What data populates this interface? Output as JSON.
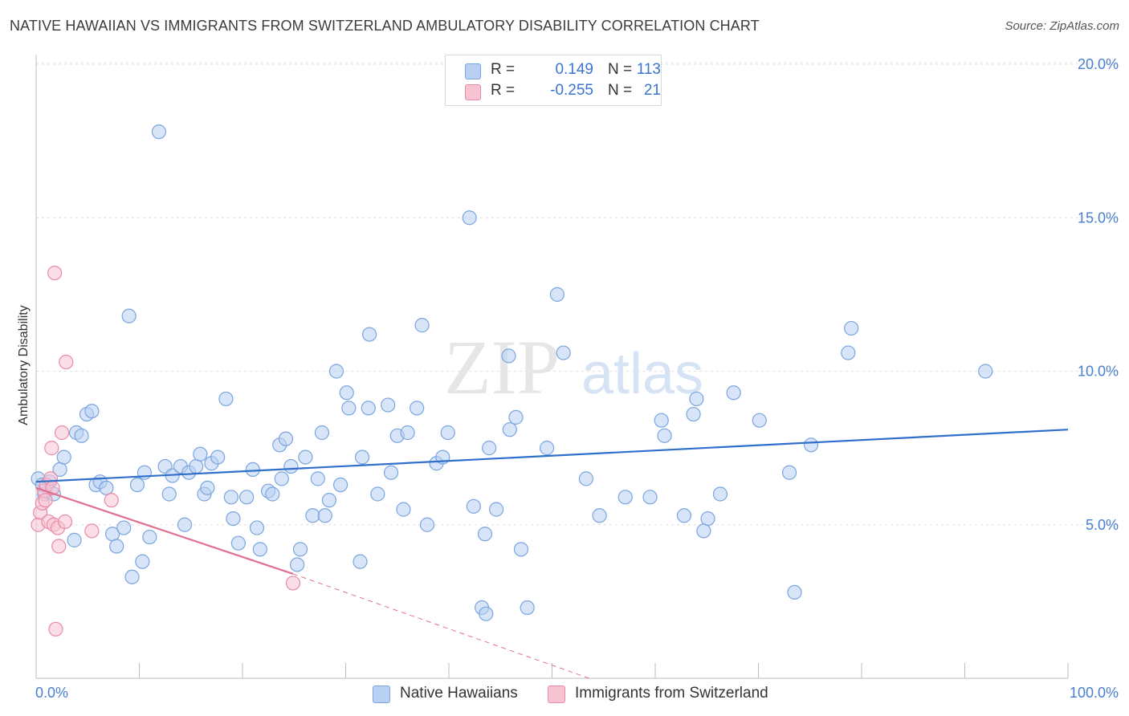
{
  "header": {
    "title": "NATIVE HAWAIIAN VS IMMIGRANTS FROM SWITZERLAND AMBULATORY DISABILITY CORRELATION CHART",
    "source": "Source: ZipAtlas.com"
  },
  "legend": {
    "rows": [
      {
        "r_label": "R =",
        "r_value": "0.149",
        "n_label": "N =",
        "n_value": "113"
      },
      {
        "r_label": "R =",
        "r_value": "-0.255",
        "n_label": "N =",
        "n_value": "21"
      }
    ]
  },
  "colors": {
    "blue_fill": "#b8d0f3",
    "blue_stroke": "#7aa5df",
    "blue_line": "#2f6fcb",
    "pink_fill": "#f7c3d1",
    "pink_stroke": "#e98aa8",
    "pink_line": "#e0708f",
    "accent_text": "#3b74cf"
  },
  "watermark": {
    "zip": "ZIP",
    "atlas": "atlas"
  },
  "chart_data": {
    "type": "scatter",
    "title": "NATIVE HAWAIIAN VS IMMIGRANTS FROM SWITZERLAND AMBULATORY DISABILITY CORRELATION CHART",
    "xlabel": "",
    "ylabel": "Ambulatory Disability",
    "xlim": [
      0,
      100
    ],
    "ylim": [
      0,
      20
    ],
    "x_tick_labels": [
      "0.0%",
      "100.0%"
    ],
    "y_ticks": [
      5,
      10,
      15,
      20
    ],
    "y_tick_labels": [
      "5.0%",
      "10.0%",
      "15.0%",
      "20.0%"
    ],
    "grid": true,
    "legend_position": "bottom",
    "series": [
      {
        "name": "Native Hawaiians",
        "color": "#7aa5df",
        "regression": {
          "x": [
            0,
            100
          ],
          "y": [
            6.4,
            8.1
          ]
        },
        "points": [
          [
            0.2,
            6.5
          ],
          [
            0.6,
            6.3
          ],
          [
            0.8,
            6.0
          ],
          [
            1.3,
            6.4
          ],
          [
            1.7,
            6.0
          ],
          [
            2.3,
            6.8
          ],
          [
            2.7,
            7.2
          ],
          [
            3.9,
            8.0
          ],
          [
            3.7,
            4.5
          ],
          [
            4.4,
            7.9
          ],
          [
            4.9,
            8.6
          ],
          [
            5.4,
            8.7
          ],
          [
            5.8,
            6.3
          ],
          [
            6.2,
            6.4
          ],
          [
            6.8,
            6.2
          ],
          [
            7.4,
            4.7
          ],
          [
            7.8,
            4.3
          ],
          [
            8.5,
            4.9
          ],
          [
            9.0,
            11.8
          ],
          [
            9.3,
            3.3
          ],
          [
            9.8,
            6.3
          ],
          [
            10.3,
            3.8
          ],
          [
            10.5,
            6.7
          ],
          [
            11.0,
            4.6
          ],
          [
            11.9,
            17.8
          ],
          [
            12.5,
            6.9
          ],
          [
            12.9,
            6.0
          ],
          [
            13.2,
            6.6
          ],
          [
            14.0,
            6.9
          ],
          [
            14.4,
            5.0
          ],
          [
            14.8,
            6.7
          ],
          [
            15.5,
            6.9
          ],
          [
            15.9,
            7.3
          ],
          [
            16.3,
            6.0
          ],
          [
            16.6,
            6.2
          ],
          [
            17.0,
            7.0
          ],
          [
            17.6,
            7.2
          ],
          [
            18.4,
            9.1
          ],
          [
            18.9,
            5.9
          ],
          [
            19.1,
            5.2
          ],
          [
            19.6,
            4.4
          ],
          [
            20.4,
            5.9
          ],
          [
            21.0,
            6.8
          ],
          [
            21.4,
            4.9
          ],
          [
            21.7,
            4.2
          ],
          [
            22.5,
            6.1
          ],
          [
            22.9,
            6.0
          ],
          [
            23.6,
            7.6
          ],
          [
            23.8,
            6.5
          ],
          [
            24.2,
            7.8
          ],
          [
            24.7,
            6.9
          ],
          [
            25.3,
            3.7
          ],
          [
            25.6,
            4.2
          ],
          [
            26.1,
            7.2
          ],
          [
            26.8,
            5.3
          ],
          [
            27.3,
            6.5
          ],
          [
            27.7,
            8.0
          ],
          [
            28.0,
            5.3
          ],
          [
            28.4,
            5.8
          ],
          [
            29.1,
            10.0
          ],
          [
            29.5,
            6.3
          ],
          [
            30.1,
            9.3
          ],
          [
            30.3,
            8.8
          ],
          [
            31.4,
            3.8
          ],
          [
            31.6,
            7.2
          ],
          [
            32.2,
            8.8
          ],
          [
            32.3,
            11.2
          ],
          [
            33.1,
            6.0
          ],
          [
            34.1,
            8.9
          ],
          [
            34.4,
            6.7
          ],
          [
            35.0,
            7.9
          ],
          [
            35.6,
            5.5
          ],
          [
            36.0,
            8.0
          ],
          [
            36.9,
            8.8
          ],
          [
            37.4,
            11.5
          ],
          [
            37.9,
            5.0
          ],
          [
            38.8,
            7.0
          ],
          [
            39.4,
            7.2
          ],
          [
            39.9,
            8.0
          ],
          [
            42.0,
            15.0
          ],
          [
            42.4,
            5.6
          ],
          [
            43.2,
            2.3
          ],
          [
            43.6,
            2.1
          ],
          [
            43.5,
            4.7
          ],
          [
            43.9,
            7.5
          ],
          [
            44.6,
            5.5
          ],
          [
            45.8,
            10.5
          ],
          [
            45.9,
            8.1
          ],
          [
            46.5,
            8.5
          ],
          [
            47.0,
            4.2
          ],
          [
            47.6,
            2.3
          ],
          [
            49.5,
            7.5
          ],
          [
            50.5,
            12.5
          ],
          [
            51.1,
            10.6
          ],
          [
            53.3,
            6.5
          ],
          [
            54.6,
            5.3
          ],
          [
            57.1,
            5.9
          ],
          [
            59.5,
            5.9
          ],
          [
            60.6,
            8.4
          ],
          [
            60.9,
            7.9
          ],
          [
            62.8,
            5.3
          ],
          [
            63.7,
            8.6
          ],
          [
            64.0,
            9.1
          ],
          [
            64.7,
            4.8
          ],
          [
            65.1,
            5.2
          ],
          [
            66.3,
            6.0
          ],
          [
            67.6,
            9.3
          ],
          [
            70.1,
            8.4
          ],
          [
            73.0,
            6.7
          ],
          [
            73.5,
            2.8
          ],
          [
            75.1,
            7.6
          ],
          [
            78.7,
            10.6
          ],
          [
            79.0,
            11.4
          ],
          [
            92.0,
            10.0
          ]
        ]
      },
      {
        "name": "Immigrants from Switzerland",
        "color": "#e98aa8",
        "regression": {
          "x": [
            0,
            24.9
          ],
          "y": [
            6.2,
            3.4
          ]
        },
        "regression_extension": {
          "x": [
            24.9,
            53.6
          ],
          "y": [
            3.4,
            0
          ]
        },
        "points": [
          [
            0.2,
            5.0
          ],
          [
            0.4,
            5.4
          ],
          [
            0.6,
            5.7
          ],
          [
            0.8,
            6.1
          ],
          [
            0.9,
            5.8
          ],
          [
            1.0,
            6.3
          ],
          [
            1.2,
            5.1
          ],
          [
            1.4,
            6.5
          ],
          [
            1.6,
            6.2
          ],
          [
            1.7,
            5.0
          ],
          [
            1.5,
            7.5
          ],
          [
            1.8,
            13.2
          ],
          [
            1.9,
            1.6
          ],
          [
            2.2,
            4.3
          ],
          [
            2.5,
            8.0
          ],
          [
            2.1,
            4.9
          ],
          [
            2.8,
            5.1
          ],
          [
            2.9,
            10.3
          ],
          [
            5.4,
            4.8
          ],
          [
            7.3,
            5.8
          ],
          [
            24.9,
            3.1
          ]
        ]
      }
    ]
  }
}
